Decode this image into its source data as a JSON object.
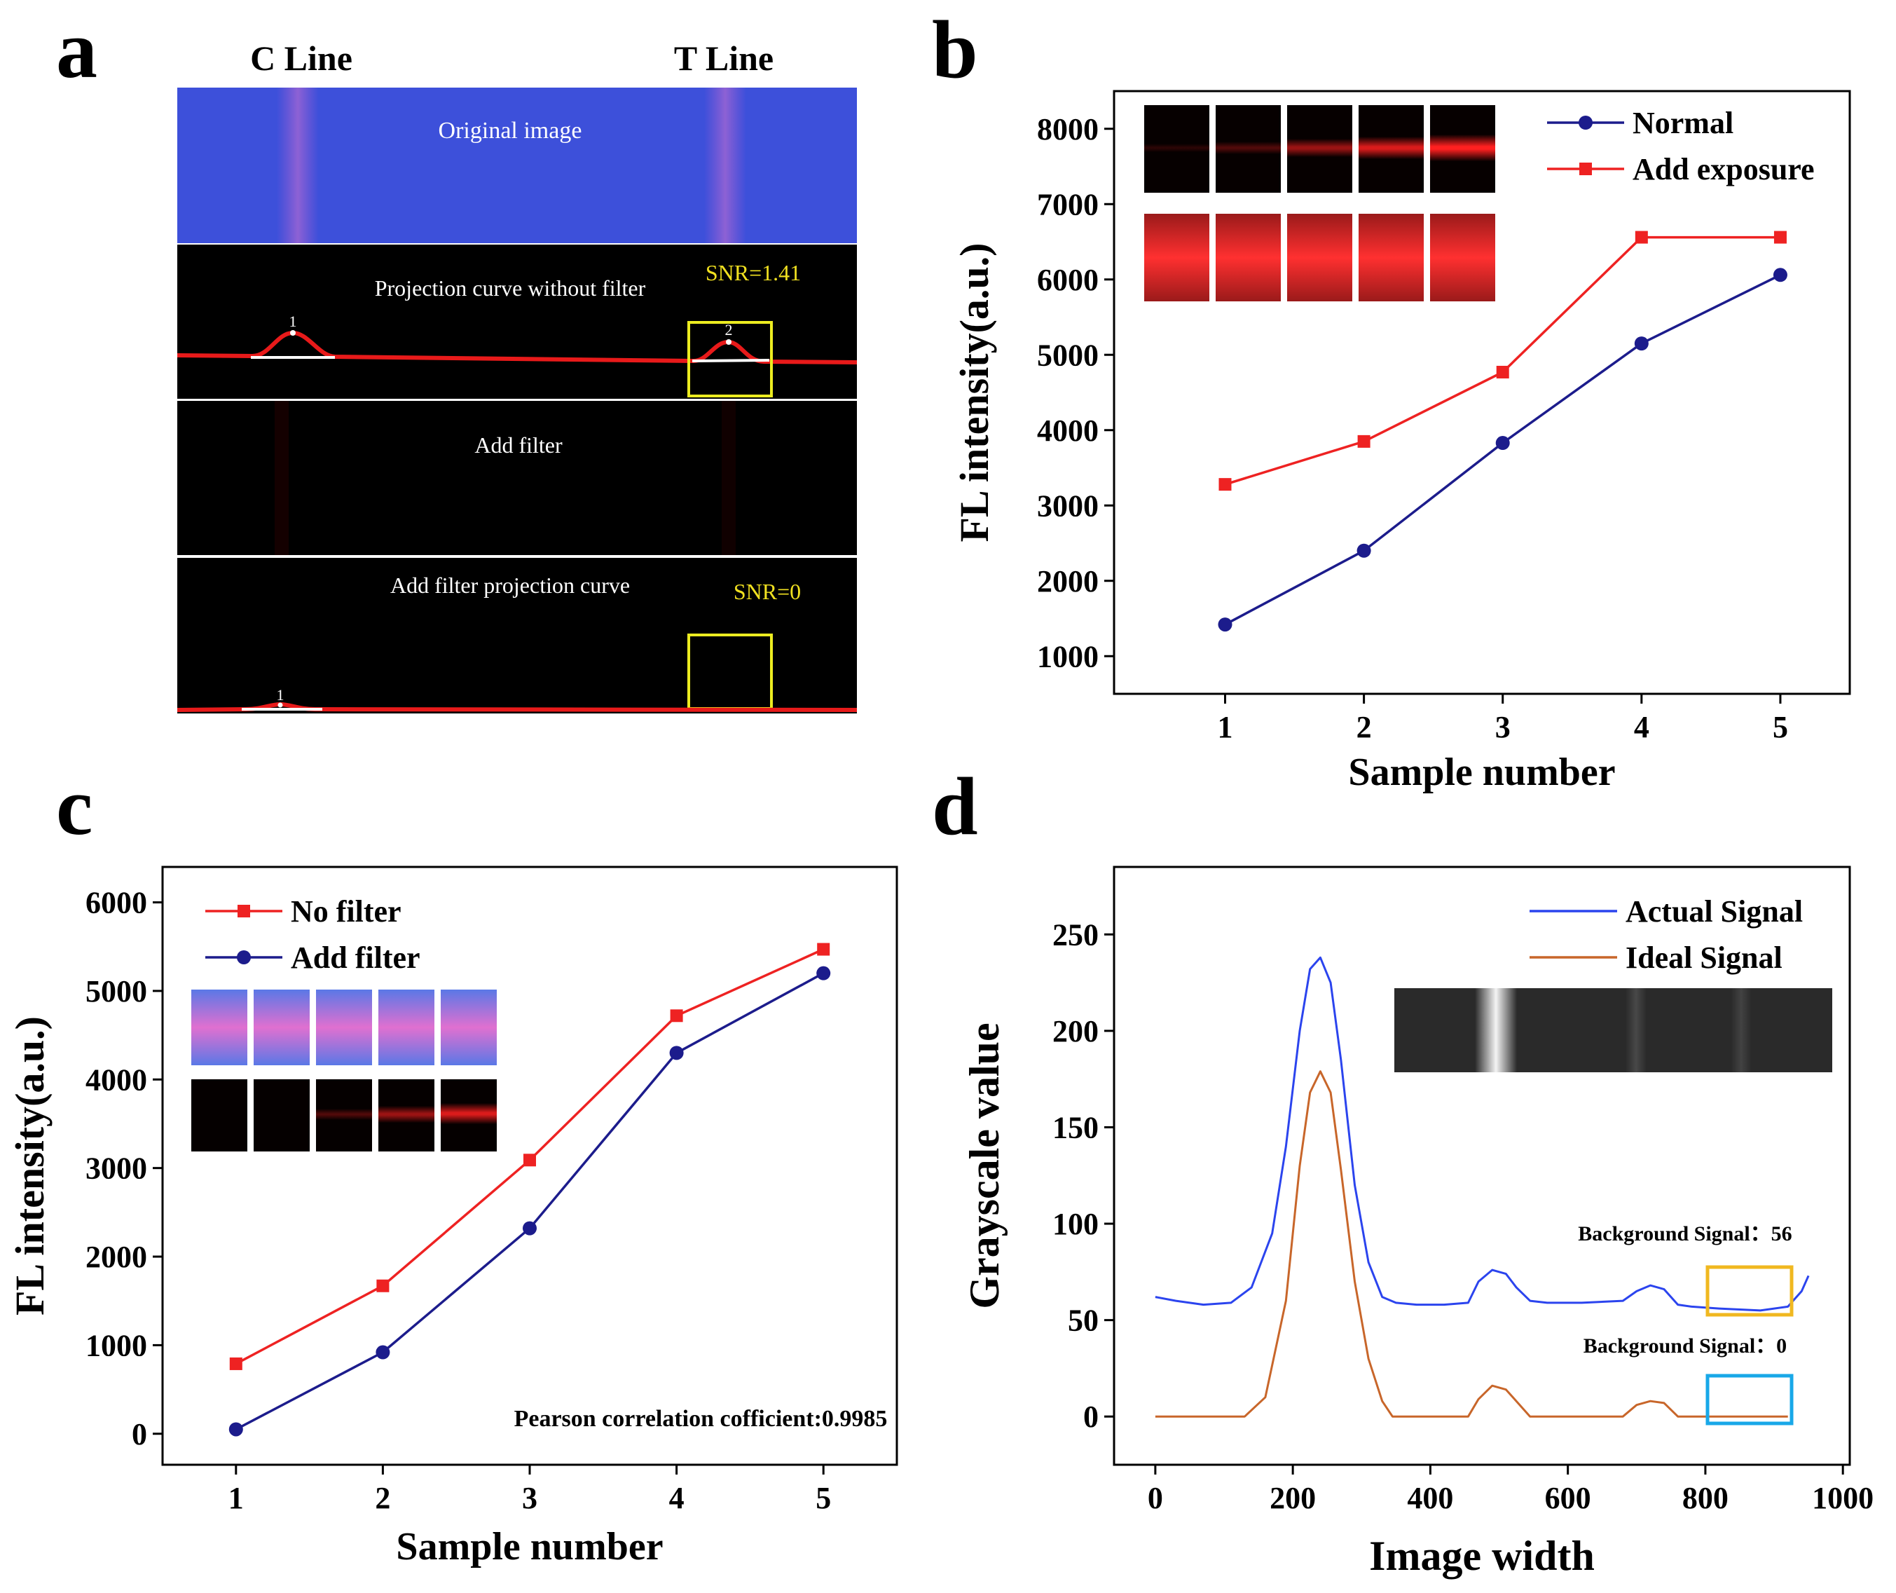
{
  "panels": {
    "a": {
      "letter": "a",
      "c_line": "C Line",
      "t_line": "T Line",
      "strip1": "Original image",
      "strip2": "Projection curve without filter",
      "strip2_snr": "SNR=1.41",
      "strip2_peak1": "1",
      "strip2_peak2": "2",
      "strip3": "Add filter",
      "strip4": "Add filter projection curve",
      "strip4_snr": "SNR=0",
      "strip4_peak1": "1"
    },
    "b": {
      "letter": "b"
    },
    "c": {
      "letter": "c"
    },
    "d": {
      "letter": "d",
      "bg_actual": "Background Signal：56",
      "bg_ideal": "Background Signal：0"
    }
  },
  "colors": {
    "red": "#ee2222",
    "navy": "#1c1c8c",
    "blue": "#2b44ee",
    "orange": "#c8662a",
    "yellow": "#f0c020",
    "cyan": "#19a8e8"
  },
  "chart_data": [
    {
      "id": "b",
      "type": "line",
      "x": [
        1,
        2,
        3,
        4,
        5
      ],
      "series": [
        {
          "name": "Normal",
          "marker": "circle",
          "color": "#1c1c8c",
          "values": [
            1420,
            2400,
            3830,
            5150,
            6060
          ]
        },
        {
          "name": "Add exposure",
          "marker": "square",
          "color": "#ee2222",
          "values": [
            3280,
            3850,
            4770,
            6560,
            6560
          ]
        }
      ],
      "xlabel": "Sample number",
      "ylabel": "FL intensity(a.u.)",
      "xlim": [
        0.2,
        5.5
      ],
      "ylim": [
        500,
        8500
      ],
      "xticks": [
        1,
        2,
        3,
        4,
        5
      ],
      "yticks": [
        1000,
        2000,
        3000,
        4000,
        5000,
        6000,
        7000,
        8000
      ],
      "legend": "top-right"
    },
    {
      "id": "c",
      "type": "line",
      "x": [
        1,
        2,
        3,
        4,
        5
      ],
      "series": [
        {
          "name": "No filter",
          "marker": "square",
          "color": "#ee2222",
          "values": [
            790,
            1670,
            3090,
            4720,
            5470
          ]
        },
        {
          "name": "Add filter",
          "marker": "circle",
          "color": "#1c1c8c",
          "values": [
            50,
            920,
            2320,
            4300,
            5200
          ]
        }
      ],
      "annotation": "Pearson correlation cofficient:0.9985",
      "xlabel": "Sample number",
      "ylabel": "FL intensity(a.u.)",
      "xlim": [
        0.5,
        5.5
      ],
      "ylim": [
        -350,
        6400
      ],
      "xticks": [
        1,
        2,
        3,
        4,
        5
      ],
      "yticks": [
        0,
        1000,
        2000,
        3000,
        4000,
        5000,
        6000
      ],
      "legend": "top-left"
    },
    {
      "id": "d",
      "type": "line",
      "series": [
        {
          "name": "Actual Signal",
          "color": "#2b44ee",
          "x": [
            0,
            30,
            70,
            110,
            140,
            170,
            190,
            210,
            225,
            240,
            255,
            270,
            290,
            310,
            330,
            350,
            380,
            420,
            455,
            470,
            490,
            510,
            525,
            545,
            570,
            620,
            680,
            700,
            720,
            740,
            760,
            780,
            820,
            880,
            920,
            940,
            950
          ],
          "values": [
            62,
            60,
            58,
            59,
            67,
            95,
            140,
            200,
            232,
            238,
            225,
            185,
            120,
            80,
            62,
            59,
            58,
            58,
            59,
            70,
            76,
            74,
            67,
            60,
            59,
            59,
            60,
            65,
            68,
            66,
            58,
            57,
            56,
            55,
            57,
            65,
            73
          ]
        },
        {
          "name": "Ideal Signal",
          "color": "#c8662a",
          "x": [
            0,
            130,
            160,
            190,
            210,
            225,
            240,
            255,
            270,
            290,
            310,
            330,
            345,
            360,
            455,
            470,
            490,
            510,
            525,
            545,
            560,
            680,
            700,
            720,
            740,
            760,
            920
          ],
          "values": [
            0,
            0,
            10,
            60,
            130,
            168,
            179,
            168,
            128,
            70,
            30,
            8,
            0,
            0,
            0,
            9,
            16,
            14,
            8,
            0,
            0,
            0,
            6,
            8,
            7,
            0,
            0
          ]
        }
      ],
      "xlabel": "Image width",
      "ylabel": "Grayscale value",
      "xlim": [
        -60,
        1010
      ],
      "ylim": [
        -25,
        285
      ],
      "xticks": [
        0,
        200,
        400,
        600,
        800,
        1000
      ],
      "yticks": [
        0,
        50,
        100,
        150,
        200,
        250
      ],
      "legend": "top-right"
    }
  ]
}
